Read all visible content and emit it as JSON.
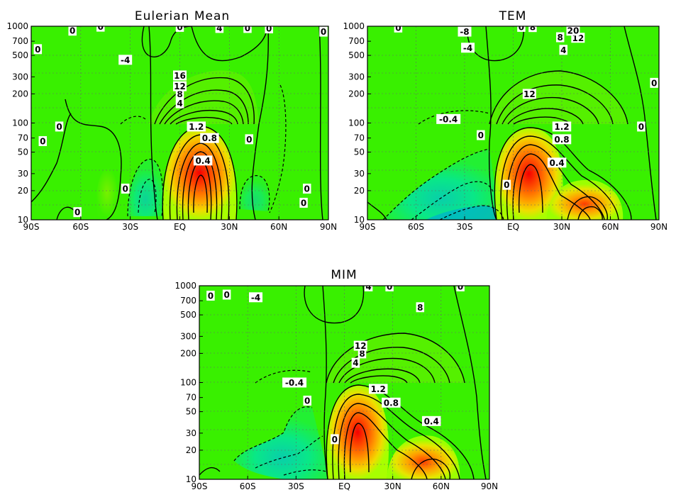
{
  "figure": {
    "panels": [
      {
        "id": "eulerian",
        "title": "Eulerian Mean"
      },
      {
        "id": "tem",
        "title": "TEM"
      },
      {
        "id": "mim",
        "title": "MIM"
      }
    ]
  },
  "chart_data": [
    {
      "type": "contour",
      "title": "Eulerian Mean",
      "xlabel": "",
      "ylabel": "",
      "x_range": [
        -90,
        90
      ],
      "y_range_hPa": [
        1000,
        10
      ],
      "x_ticks": [
        "90S",
        "60S",
        "30S",
        "EQ",
        "30N",
        "60N",
        "90N"
      ],
      "y_ticks": [
        "10",
        "20",
        "30",
        "50",
        "70",
        "100",
        "200",
        "300",
        "500",
        "700",
        "1000"
      ],
      "grid": "dotted",
      "contour_labels": [
        {
          "text": "0",
          "lat": -62,
          "p": 12
        },
        {
          "text": "0",
          "lat": -33,
          "p": 21
        },
        {
          "text": "0",
          "lat": 75,
          "p": 15
        },
        {
          "text": "0",
          "lat": 77,
          "p": 21
        },
        {
          "text": "0",
          "lat": -83,
          "p": 65
        },
        {
          "text": "0",
          "lat": -73,
          "p": 92
        },
        {
          "text": "0",
          "lat": 42,
          "p": 68
        },
        {
          "text": "0.4",
          "lat": 14,
          "p": 41
        },
        {
          "text": "0.8",
          "lat": 18,
          "p": 70
        },
        {
          "text": "1.2",
          "lat": 10,
          "p": 92
        },
        {
          "text": "4",
          "lat": 0,
          "p": 160
        },
        {
          "text": "8",
          "lat": 0,
          "p": 200
        },
        {
          "text": "12",
          "lat": 0,
          "p": 240
        },
        {
          "text": "16",
          "lat": 0,
          "p": 310
        },
        {
          "text": "-4",
          "lat": -33,
          "p": 450
        },
        {
          "text": "0",
          "lat": -86,
          "p": 580
        },
        {
          "text": "0",
          "lat": -65,
          "p": 900
        },
        {
          "text": "0",
          "lat": -48,
          "p": 990
        },
        {
          "text": "0",
          "lat": 0,
          "p": 985
        },
        {
          "text": "4",
          "lat": 24,
          "p": 960
        },
        {
          "text": "0",
          "lat": 41,
          "p": 960
        },
        {
          "text": "0",
          "lat": 54,
          "p": 950
        },
        {
          "text": "0",
          "lat": 87,
          "p": 880
        }
      ]
    },
    {
      "type": "contour",
      "title": "TEM",
      "xlabel": "",
      "ylabel": "",
      "x_range": [
        -90,
        90
      ],
      "y_range_hPa": [
        1000,
        10
      ],
      "x_ticks": [
        "90S",
        "60S",
        "30S",
        "EQ",
        "30N",
        "60N",
        "90N"
      ],
      "y_ticks": [
        "10",
        "20",
        "30",
        "50",
        "70",
        "100",
        "200",
        "300",
        "500",
        "700",
        "1000"
      ],
      "grid": "dotted",
      "contour_labels": [
        {
          "text": "0",
          "lat": -4,
          "p": 23
        },
        {
          "text": "0.4",
          "lat": 27,
          "p": 39
        },
        {
          "text": "0.8",
          "lat": 30,
          "p": 68
        },
        {
          "text": "1.2",
          "lat": 30,
          "p": 92
        },
        {
          "text": "0",
          "lat": -20,
          "p": 75
        },
        {
          "text": "-0.4",
          "lat": -40,
          "p": 110
        },
        {
          "text": "0",
          "lat": 79,
          "p": 92
        },
        {
          "text": "0",
          "lat": 87,
          "p": 260
        },
        {
          "text": "12",
          "lat": 10,
          "p": 200
        },
        {
          "text": "4",
          "lat": 31,
          "p": 570
        },
        {
          "text": "-4",
          "lat": -28,
          "p": 600
        },
        {
          "text": "-8",
          "lat": -30,
          "p": 880
        },
        {
          "text": "8",
          "lat": 29,
          "p": 770
        },
        {
          "text": "12",
          "lat": 40,
          "p": 760
        },
        {
          "text": "20",
          "lat": 37,
          "p": 900
        },
        {
          "text": "0",
          "lat": -71,
          "p": 970
        },
        {
          "text": "0",
          "lat": 5,
          "p": 985
        },
        {
          "text": "8",
          "lat": 12,
          "p": 980
        }
      ]
    },
    {
      "type": "contour",
      "title": "MIM",
      "xlabel": "",
      "ylabel": "",
      "x_range": [
        -90,
        90
      ],
      "y_range_hPa": [
        1000,
        10
      ],
      "x_ticks": [
        "90S",
        "60S",
        "30S",
        "EQ",
        "30N",
        "60N",
        "90N"
      ],
      "y_ticks": [
        "10",
        "20",
        "30",
        "50",
        "70",
        "100",
        "200",
        "300",
        "500",
        "700",
        "1000"
      ],
      "grid": "dotted",
      "contour_labels": [
        {
          "text": "0",
          "lat": -6,
          "p": 26
        },
        {
          "text": "0.4",
          "lat": 54,
          "p": 40
        },
        {
          "text": "0.8",
          "lat": 29,
          "p": 62
        },
        {
          "text": "1.2",
          "lat": 21,
          "p": 86
        },
        {
          "text": "0",
          "lat": -23,
          "p": 65
        },
        {
          "text": "-0.4",
          "lat": -31,
          "p": 100
        },
        {
          "text": "4",
          "lat": 7,
          "p": 160
        },
        {
          "text": "8",
          "lat": 11,
          "p": 200
        },
        {
          "text": "12",
          "lat": 10,
          "p": 240
        },
        {
          "text": "8",
          "lat": 47,
          "p": 600
        },
        {
          "text": "-4",
          "lat": -55,
          "p": 760
        },
        {
          "text": "0",
          "lat": -83,
          "p": 790
        },
        {
          "text": "0",
          "lat": -73,
          "p": 810
        },
        {
          "text": "4",
          "lat": 15,
          "p": 985
        },
        {
          "text": "0",
          "lat": 28,
          "p": 985
        },
        {
          "text": "0",
          "lat": 72,
          "p": 985
        }
      ]
    }
  ]
}
